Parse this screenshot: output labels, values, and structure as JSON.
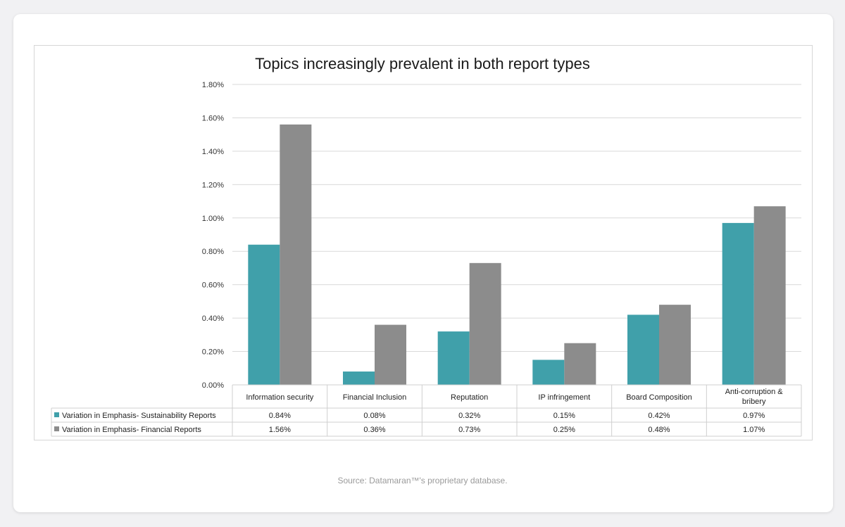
{
  "source": "Source: Datamaran™'s proprietary database.",
  "chart_data": {
    "type": "bar",
    "title": "Topics increasingly prevalent in both report types",
    "categories": [
      "Information security",
      "Financial Inclusion",
      "Reputation",
      "IP infringement",
      "Board Composition",
      "Anti-corruption & bribery"
    ],
    "series": [
      {
        "name": "Variation in Emphasis- Sustainability Reports",
        "values": [
          0.84,
          0.08,
          0.32,
          0.15,
          0.42,
          0.97
        ],
        "labels": [
          "0.84%",
          "0.08%",
          "0.32%",
          "0.15%",
          "0.42%",
          "0.97%"
        ],
        "color": "#40a0aa"
      },
      {
        "name": "Variation in Emphasis- Financial Reports",
        "values": [
          1.56,
          0.36,
          0.73,
          0.25,
          0.48,
          1.07
        ],
        "labels": [
          "1.56%",
          "0.36%",
          "0.73%",
          "0.25%",
          "0.48%",
          "1.07%"
        ],
        "color": "#8c8c8c"
      }
    ],
    "yticks": [
      0,
      0.2,
      0.4,
      0.6,
      0.8,
      1.0,
      1.2,
      1.4,
      1.6,
      1.8
    ],
    "ytick_labels": [
      "0.00%",
      "0.20%",
      "0.40%",
      "0.60%",
      "0.80%",
      "1.00%",
      "1.20%",
      "1.40%",
      "1.60%",
      "1.80%"
    ],
    "ylim": [
      0,
      1.8
    ],
    "grid": true,
    "legend": "data-table"
  }
}
